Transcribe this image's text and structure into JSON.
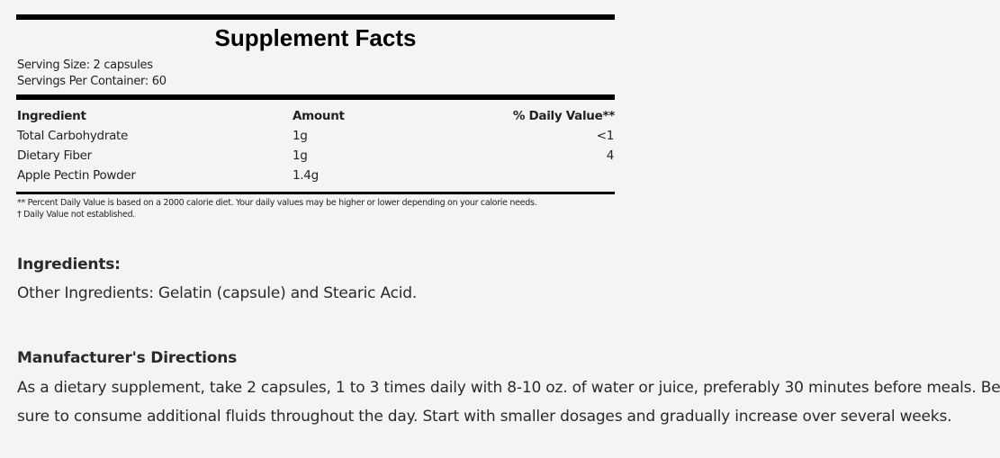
{
  "facts": {
    "title": "Supplement Facts",
    "serving_size": "Serving Size: 2 capsules",
    "servings_per_container": "Servings Per Container: 60",
    "headers": [
      "Ingredient",
      "Amount",
      "% Daily Value**"
    ],
    "rows": [
      [
        "Total Carbohydrate",
        "1g",
        "<1"
      ],
      [
        "Dietary Fiber",
        "1g",
        "4"
      ],
      [
        "Apple Pectin Powder",
        "1.4g",
        ""
      ]
    ],
    "footnote1": "** Percent Daily Value is based on a 2000 calorie diet. Your daily values may be higher or lower depending on your calorie needs.",
    "footnote2": "† Daily Value not established."
  },
  "ingredients": {
    "heading": "Ingredients:",
    "text": "Other Ingredients: Gelatin (capsule) and Stearic Acid."
  },
  "directions": {
    "heading": "Manufacturer's Directions",
    "line1": "As a dietary supplement, take 2 capsules, 1 to 3 times daily with 8-10 oz. of water or juice, preferably 30 minutes before meals. Be",
    "line2": "sure to consume additional fluids throughout the day. Start with smaller dosages and gradually increase over several weeks."
  }
}
